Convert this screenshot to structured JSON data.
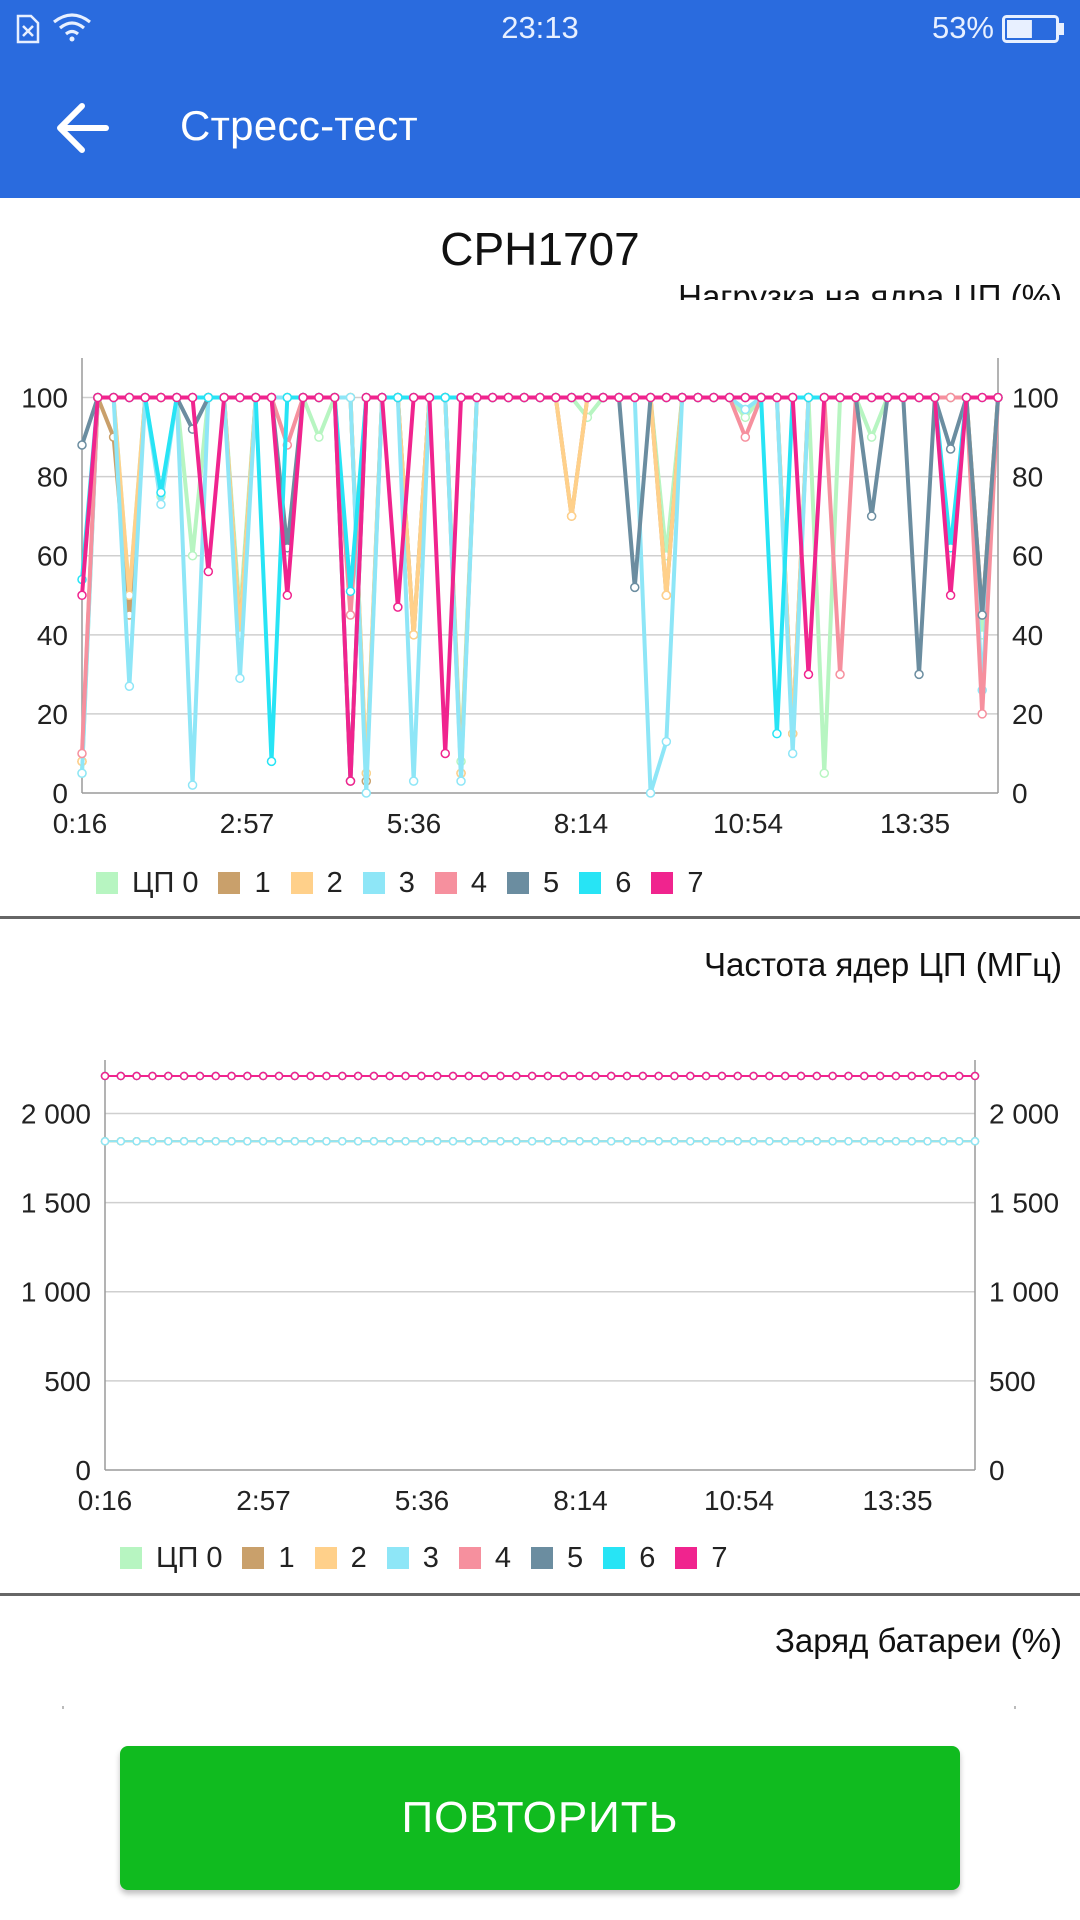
{
  "status_bar": {
    "time": "23:13",
    "battery_percent": "53%",
    "battery_level": 0.53
  },
  "app_bar": {
    "title": "Стресс-тест"
  },
  "device_name": "CPH1707",
  "chart_load": {
    "title": "Нагрузка на ядра ЦП (%)",
    "chart_data": {
      "type": "line",
      "title": "Нагрузка на ядра ЦП (%)",
      "x_tick_labels": [
        "0:16",
        "2:57",
        "5:36",
        "8:14",
        "10:54",
        "13:35"
      ],
      "ylim": [
        0,
        110
      ],
      "y_ticks": [
        0,
        20,
        40,
        60,
        80,
        100
      ],
      "y_tick_labels": [
        "0",
        "20",
        "40",
        "60",
        "80",
        "100"
      ],
      "grid": true,
      "legend_position": "bottom-left",
      "series": [
        {
          "name": "ЦП 0",
          "color": "#b7f5c1",
          "values": [
            5,
            100,
            100,
            50,
            100,
            75,
            100,
            60,
            100,
            100,
            45,
            100,
            100,
            100,
            100,
            90,
            100,
            100,
            5,
            100,
            100,
            40,
            100,
            100,
            8,
            100,
            100,
            100,
            100,
            100,
            100,
            100,
            95,
            100,
            100,
            100,
            100,
            60,
            100,
            100,
            100,
            100,
            95,
            100,
            100,
            100,
            100,
            5,
            100,
            100,
            90,
            100,
            100,
            100,
            100,
            100,
            100,
            40,
            100
          ]
        },
        {
          "name": "1",
          "color": "#c9a06b",
          "values": [
            8,
            100,
            90,
            45,
            100,
            100,
            100,
            100,
            100,
            100,
            40,
            100,
            100,
            100,
            100,
            100,
            100,
            100,
            3,
            100,
            100,
            40,
            100,
            100,
            5,
            100,
            100,
            100,
            100,
            100,
            100,
            70,
            100,
            100,
            100,
            100,
            100,
            50,
            100,
            100,
            100,
            100,
            100,
            100,
            100,
            15,
            100,
            100,
            100,
            100,
            100,
            100,
            100,
            100,
            100,
            100,
            100,
            45,
            100
          ]
        },
        {
          "name": "2",
          "color": "#ffd08a",
          "values": [
            8,
            100,
            100,
            50,
            100,
            100,
            100,
            100,
            100,
            100,
            40,
            100,
            100,
            100,
            100,
            100,
            100,
            100,
            5,
            100,
            100,
            40,
            100,
            100,
            5,
            100,
            100,
            100,
            100,
            100,
            100,
            70,
            100,
            100,
            100,
            100,
            100,
            50,
            100,
            100,
            100,
            100,
            100,
            100,
            100,
            15,
            100,
            100,
            100,
            100,
            100,
            100,
            100,
            100,
            100,
            100,
            100,
            45,
            100
          ]
        },
        {
          "name": "3",
          "color": "#8ee6f7",
          "values": [
            5,
            100,
            100,
            27,
            100,
            73,
            100,
            2,
            100,
            100,
            29,
            100,
            100,
            100,
            100,
            100,
            100,
            100,
            0,
            100,
            100,
            3,
            100,
            100,
            3,
            100,
            100,
            100,
            100,
            100,
            100,
            100,
            100,
            100,
            100,
            100,
            0,
            13,
            100,
            100,
            100,
            100,
            97,
            100,
            100,
            10,
            100,
            100,
            100,
            100,
            100,
            100,
            100,
            100,
            100,
            100,
            100,
            26,
            100
          ]
        },
        {
          "name": "4",
          "color": "#f6909e",
          "values": [
            10,
            100,
            100,
            100,
            100,
            100,
            100,
            100,
            100,
            100,
            100,
            100,
            100,
            88,
            100,
            100,
            100,
            45,
            100,
            100,
            100,
            100,
            100,
            100,
            100,
            100,
            100,
            100,
            100,
            100,
            100,
            100,
            100,
            100,
            100,
            100,
            100,
            100,
            100,
            100,
            100,
            100,
            90,
            100,
            100,
            100,
            100,
            100,
            30,
            100,
            100,
            100,
            100,
            100,
            100,
            100,
            100,
            20,
            100
          ]
        },
        {
          "name": "5",
          "color": "#6b8da0",
          "values": [
            88,
            100,
            100,
            100,
            100,
            100,
            100,
            92,
            100,
            100,
            100,
            100,
            100,
            62,
            100,
            100,
            100,
            3,
            100,
            100,
            100,
            100,
            100,
            100,
            100,
            100,
            100,
            100,
            100,
            100,
            100,
            100,
            100,
            100,
            100,
            52,
            100,
            100,
            100,
            100,
            100,
            100,
            100,
            100,
            100,
            100,
            100,
            100,
            100,
            100,
            70,
            100,
            100,
            30,
            100,
            87,
            100,
            45,
            100
          ]
        },
        {
          "name": "6",
          "color": "#27e4f5",
          "values": [
            54,
            100,
            100,
            100,
            100,
            76,
            100,
            100,
            100,
            100,
            100,
            100,
            8,
            100,
            100,
            100,
            100,
            51,
            100,
            100,
            100,
            100,
            100,
            100,
            100,
            100,
            100,
            100,
            100,
            100,
            100,
            100,
            100,
            100,
            100,
            100,
            100,
            100,
            100,
            100,
            100,
            100,
            100,
            100,
            15,
            100,
            100,
            100,
            100,
            100,
            100,
            100,
            100,
            100,
            100,
            62,
            100,
            100,
            100
          ]
        },
        {
          "name": "7",
          "color": "#f0248e",
          "values": [
            50,
            100,
            100,
            100,
            100,
            100,
            100,
            100,
            56,
            100,
            100,
            100,
            100,
            50,
            100,
            100,
            100,
            3,
            100,
            100,
            47,
            100,
            100,
            10,
            100,
            100,
            100,
            100,
            100,
            100,
            100,
            100,
            100,
            100,
            100,
            100,
            100,
            100,
            100,
            100,
            100,
            100,
            100,
            100,
            100,
            100,
            30,
            100,
            100,
            100,
            100,
            100,
            100,
            100,
            100,
            50,
            100,
            100,
            100
          ]
        }
      ]
    }
  },
  "chart_freq": {
    "title": "Частота ядер ЦП (МГц)",
    "chart_data": {
      "type": "line",
      "title": "Частота ядер ЦП (МГц)",
      "x_tick_labels": [
        "0:16",
        "2:57",
        "5:36",
        "8:14",
        "10:54",
        "13:35"
      ],
      "ylim": [
        0,
        2300
      ],
      "y_ticks": [
        0,
        500,
        1000,
        1500,
        2000
      ],
      "y_tick_labels": [
        "0",
        "500",
        "1 000",
        "1 500",
        "2 000"
      ],
      "grid": true,
      "legend_position": "bottom-left",
      "point_count": 56,
      "series": [
        {
          "name": "ЦП 0",
          "color": "#b7f5c1",
          "value": 1844
        },
        {
          "name": "1",
          "color": "#c9a06b",
          "value": 1844
        },
        {
          "name": "2",
          "color": "#ffd08a",
          "value": 1844
        },
        {
          "name": "3",
          "color": "#8ee6f7",
          "value": 1844
        },
        {
          "name": "4",
          "color": "#f6909e",
          "value": 2210
        },
        {
          "name": "5",
          "color": "#6b8da0",
          "value": 2210
        },
        {
          "name": "6",
          "color": "#27e4f5",
          "value": 2210
        },
        {
          "name": "7",
          "color": "#f0248e",
          "value": 2210
        }
      ]
    }
  },
  "chart_battery": {
    "title": "Заряд батареи (%)"
  },
  "retry_button": {
    "label": "ПОВТОРИТЬ",
    "color": "#10bb1f"
  },
  "colors": {
    "app_bar": "#2a6bde",
    "grid": "#cfcfcf",
    "axis": "#9a9a9a"
  }
}
